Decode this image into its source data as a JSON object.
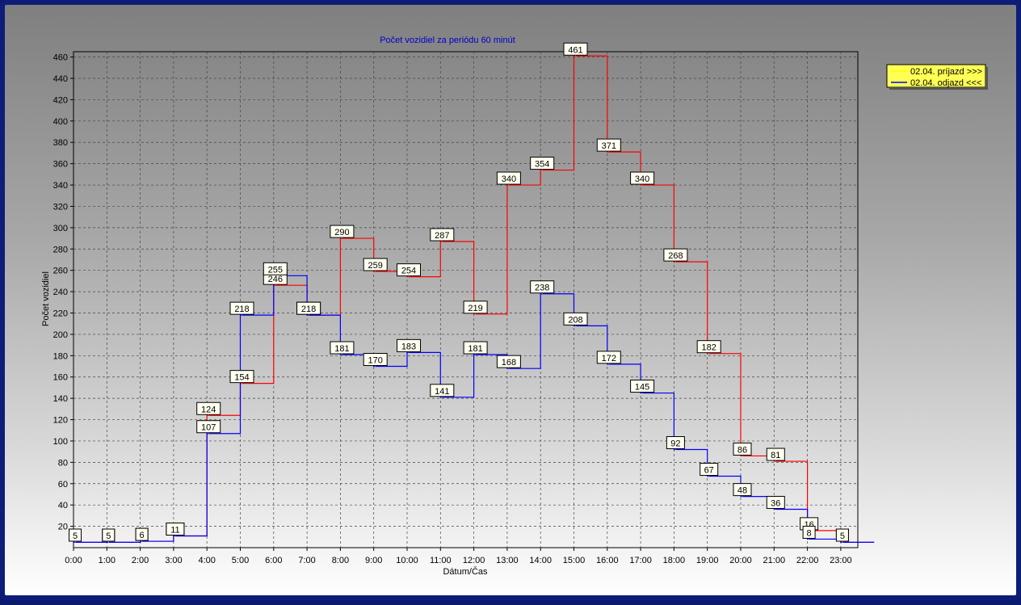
{
  "chart_data": {
    "type": "line",
    "step": true,
    "title": "Počet vozidiel za periódu 60 minút",
    "xlabel": "Dátum/Čas",
    "ylabel": "Počet vozidiel",
    "x": [
      "0:00",
      "1:00",
      "2:00",
      "3:00",
      "4:00",
      "5:00",
      "6:00",
      "7:00",
      "8:00",
      "9:00",
      "10:00",
      "11:00",
      "12:00",
      "13:00",
      "14:00",
      "15:00",
      "16:00",
      "17:00",
      "18:00",
      "19:00",
      "20:00",
      "21:00",
      "22:00",
      "23:00"
    ],
    "y_ticks": [
      20,
      40,
      60,
      80,
      100,
      120,
      140,
      160,
      180,
      200,
      220,
      240,
      260,
      280,
      300,
      320,
      340,
      360,
      380,
      400,
      420,
      440,
      460
    ],
    "ylim": [
      0,
      465
    ],
    "grid": true,
    "legend_position": "top-right",
    "series": [
      {
        "name": "02.04.  príjazd >>>",
        "color": "#ff0000",
        "legend_color": "#ffff00",
        "values": [
          5,
          5,
          6,
          11,
          124,
          154,
          246,
          218,
          290,
          259,
          254,
          287,
          219,
          340,
          354,
          461,
          371,
          340,
          268,
          182,
          86,
          81,
          16,
          5
        ]
      },
      {
        "name": "02.04.  odjazd <<<",
        "color": "#0000ff",
        "legend_color": "#0000ff",
        "values": [
          5,
          5,
          6,
          11,
          107,
          218,
          255,
          218,
          181,
          170,
          183,
          141,
          181,
          168,
          238,
          208,
          172,
          145,
          92,
          67,
          48,
          36,
          8,
          5
        ]
      }
    ]
  }
}
